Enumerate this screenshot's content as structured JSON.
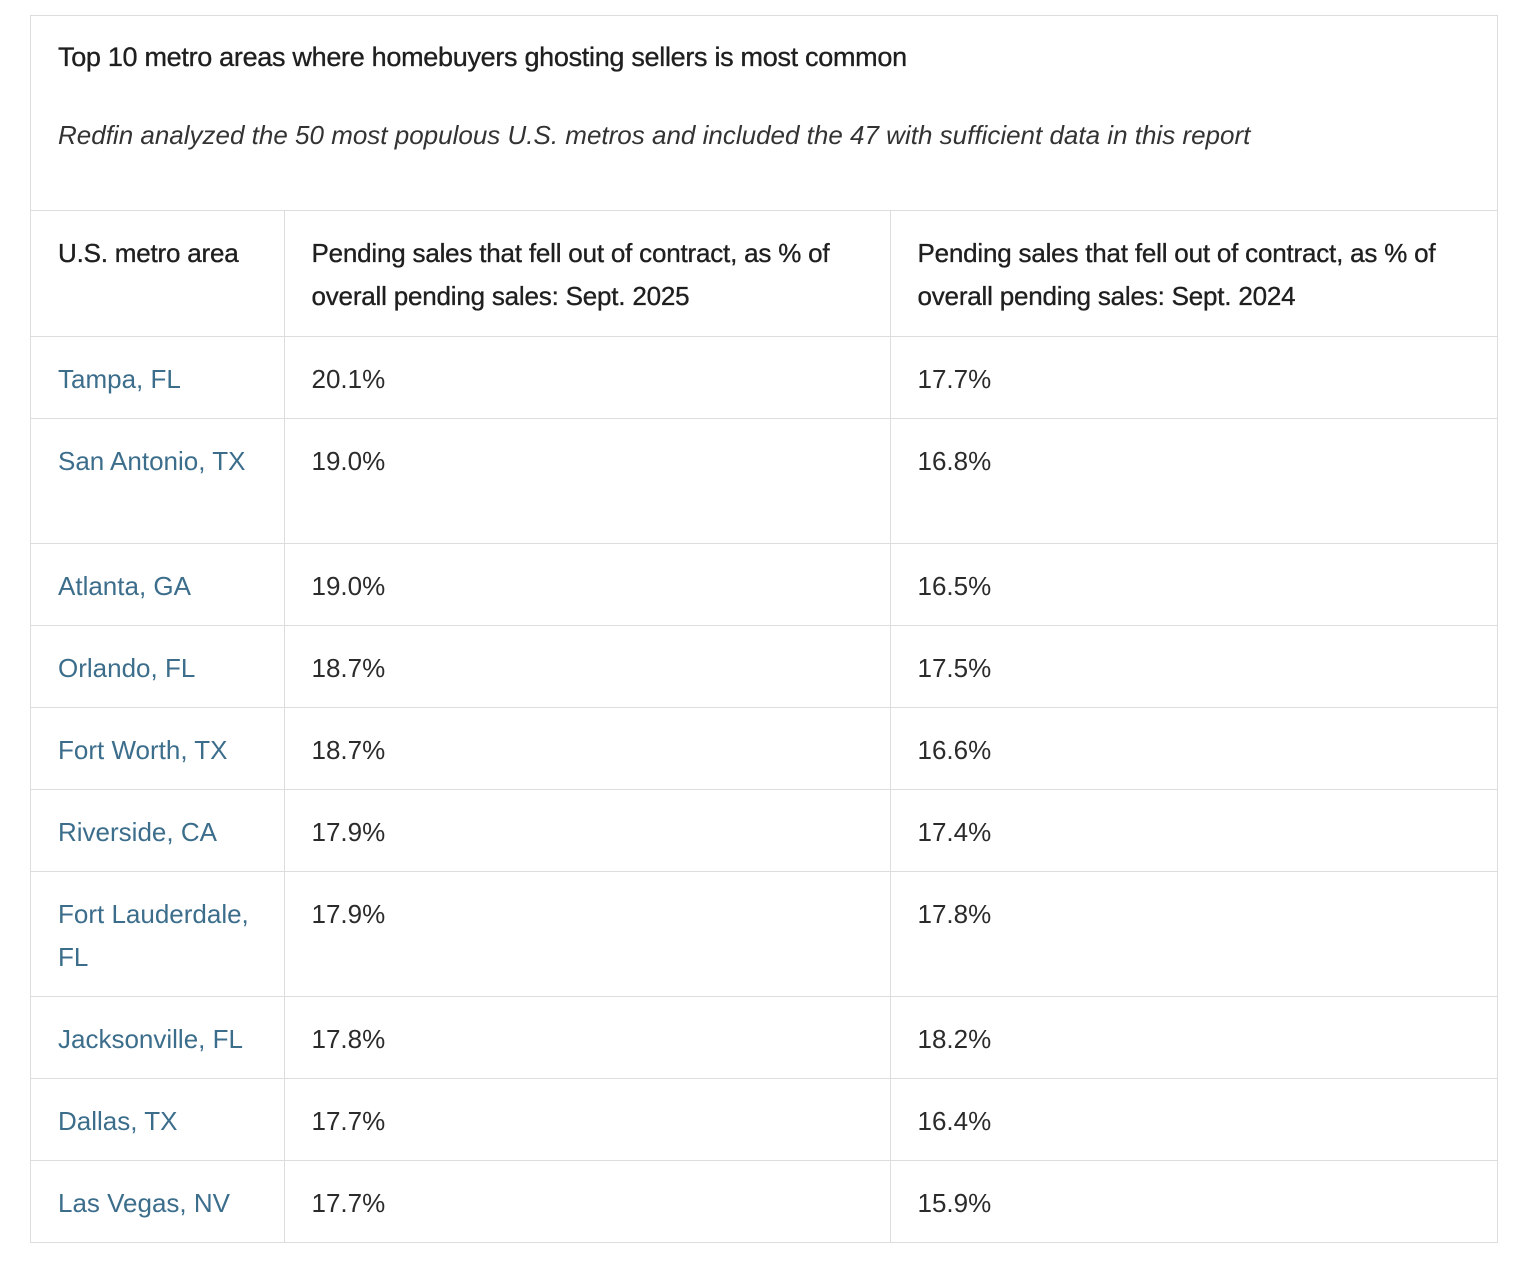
{
  "caption": {
    "title": "Top 10 metro areas where homebuyers ghosting sellers is most common",
    "subtitle": "Redfin analyzed the 50 most populous U.S. metros and included the 47 with sufficient data in this report"
  },
  "table": {
    "headers": [
      "U.S. metro area",
      "Pending sales that fell out of contract, as % of overall pending sales: Sept. 2025",
      "Pending sales that fell out of contract, as % of overall pending sales:  Sept. 2024"
    ],
    "rows": [
      {
        "metro": "Tampa, FL",
        "sept_2025": "20.1%",
        "sept_2024": "17.7%"
      },
      {
        "metro": "San Antonio, TX",
        "sept_2025": "19.0%",
        "sept_2024": "16.8%"
      },
      {
        "metro": "Atlanta, GA",
        "sept_2025": "19.0%",
        "sept_2024": "16.5%"
      },
      {
        "metro": "Orlando, FL",
        "sept_2025": "18.7%",
        "sept_2024": "17.5%"
      },
      {
        "metro": "Fort Worth, TX",
        "sept_2025": "18.7%",
        "sept_2024": "16.6%"
      },
      {
        "metro": "Riverside, CA",
        "sept_2025": "17.9%",
        "sept_2024": "17.4%"
      },
      {
        "metro": "Fort Lauderdale, FL",
        "sept_2025": "17.9%",
        "sept_2024": "17.8%"
      },
      {
        "metro": "Jacksonville, FL",
        "sept_2025": "17.8%",
        "sept_2024": "18.2%"
      },
      {
        "metro": "Dallas, TX",
        "sept_2025": "17.7%",
        "sept_2024": "16.4%"
      },
      {
        "metro": "Las Vegas, NV",
        "sept_2025": "17.7%",
        "sept_2024": "15.9%"
      }
    ]
  },
  "colors": {
    "metro_link": "#3c6e8c",
    "border": "#dddddd",
    "text": "#2b2b2b"
  }
}
